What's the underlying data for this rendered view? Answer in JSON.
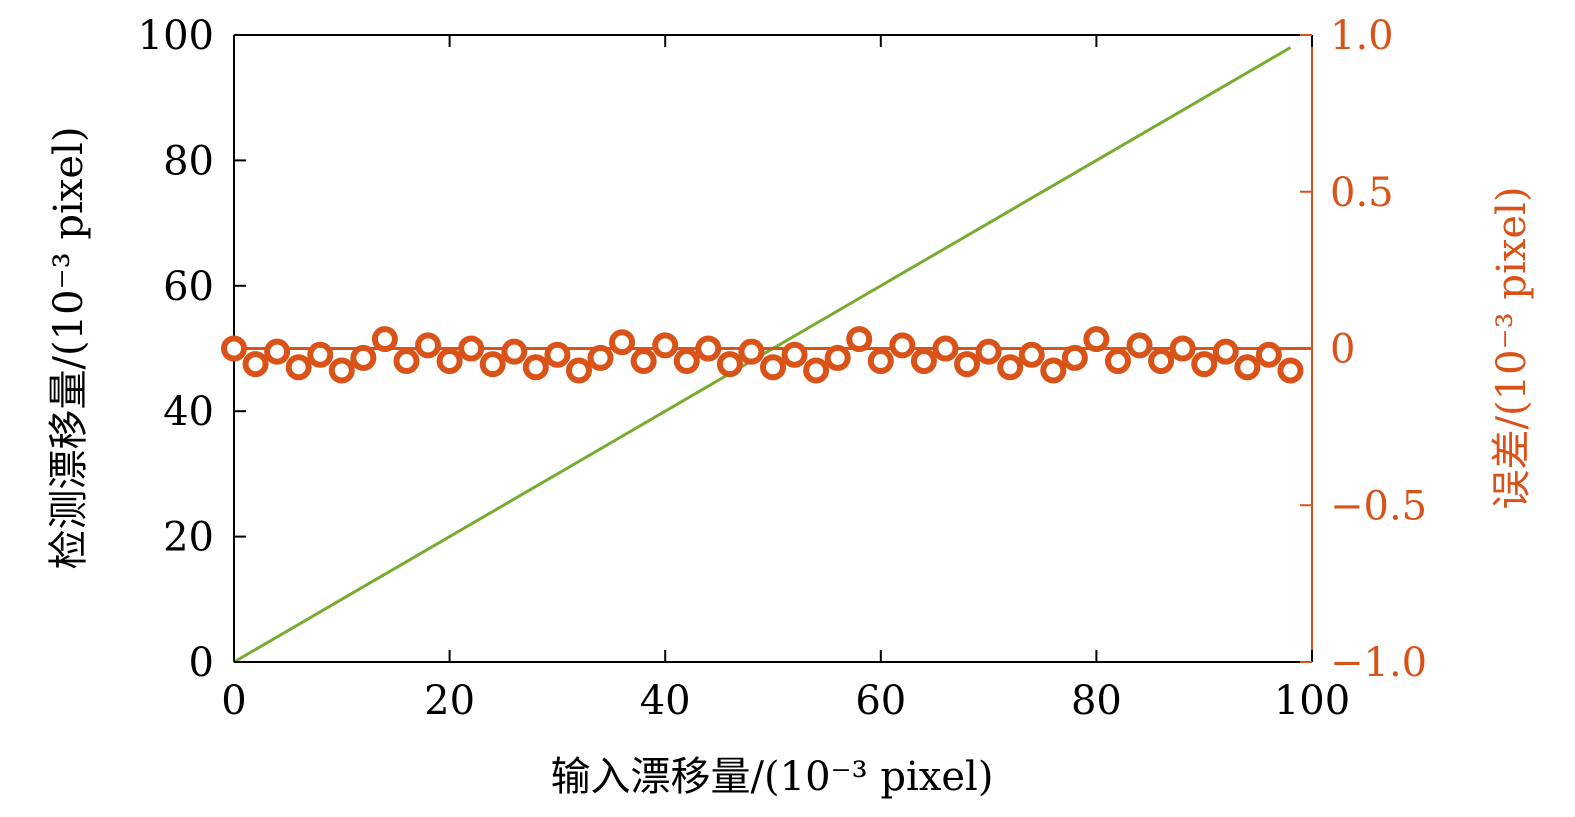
{
  "chart_data": {
    "type": "line",
    "xlabel": "输入漂移量/(10⁻³ pixel)",
    "ylabel_left": "检测漂移量/(10⁻³ pixel)",
    "ylabel_right": "误差/(10⁻³ pixel)",
    "xlim": [
      0,
      100
    ],
    "ylim_left": [
      0,
      100
    ],
    "ylim_right": [
      -1.0,
      1.0
    ],
    "x_ticks": [
      0,
      20,
      40,
      60,
      80,
      100
    ],
    "x_tick_labels": [
      "0",
      "20",
      "40",
      "60",
      "80",
      "100"
    ],
    "y_left_ticks": [
      0,
      20,
      40,
      60,
      80,
      100
    ],
    "y_left_tick_labels": [
      "0",
      "20",
      "40",
      "60",
      "80",
      "100"
    ],
    "y_right_ticks": [
      -1.0,
      -0.5,
      0,
      0.5,
      1.0
    ],
    "y_right_tick_labels": [
      "−1.0",
      "−0.5",
      "0",
      "0.5",
      "1.0"
    ],
    "grid": false,
    "series": [
      {
        "axis": "left",
        "kind": "line",
        "color": "#77ac30",
        "x": [
          0,
          98
        ],
        "y": [
          0,
          98
        ]
      },
      {
        "axis": "right",
        "kind": "markers",
        "marker": "circle",
        "color": "#d95319",
        "x": [
          0,
          2,
          4,
          6,
          8,
          10,
          12,
          14,
          16,
          18,
          20,
          22,
          24,
          26,
          28,
          30,
          32,
          34,
          36,
          38,
          40,
          42,
          44,
          46,
          48,
          50,
          52,
          54,
          56,
          58,
          60,
          62,
          64,
          66,
          68,
          70,
          72,
          74,
          76,
          78,
          80,
          82,
          84,
          86,
          88,
          90,
          92,
          94,
          96,
          98
        ],
        "y": [
          0.0,
          -0.05,
          -0.01,
          -0.06,
          -0.02,
          -0.07,
          -0.03,
          0.03,
          -0.04,
          0.01,
          -0.04,
          0.0,
          -0.05,
          -0.01,
          -0.06,
          -0.02,
          -0.07,
          -0.03,
          0.02,
          -0.04,
          0.01,
          -0.04,
          0.0,
          -0.05,
          -0.01,
          -0.06,
          -0.02,
          -0.07,
          -0.03,
          0.03,
          -0.04,
          0.01,
          -0.04,
          0.0,
          -0.05,
          -0.01,
          -0.06,
          -0.02,
          -0.07,
          -0.03,
          0.03,
          -0.04,
          0.01,
          -0.04,
          0.0,
          -0.05,
          -0.01,
          -0.06,
          -0.02,
          -0.07
        ]
      },
      {
        "axis": "right",
        "kind": "reference-line",
        "color": "#d95319",
        "x": [
          0,
          100
        ],
        "y": [
          0,
          0
        ]
      }
    ],
    "colors": {
      "axis": "#000000",
      "right_axis": "#d95319",
      "line": "#77ac30",
      "markers": "#d95319"
    }
  }
}
